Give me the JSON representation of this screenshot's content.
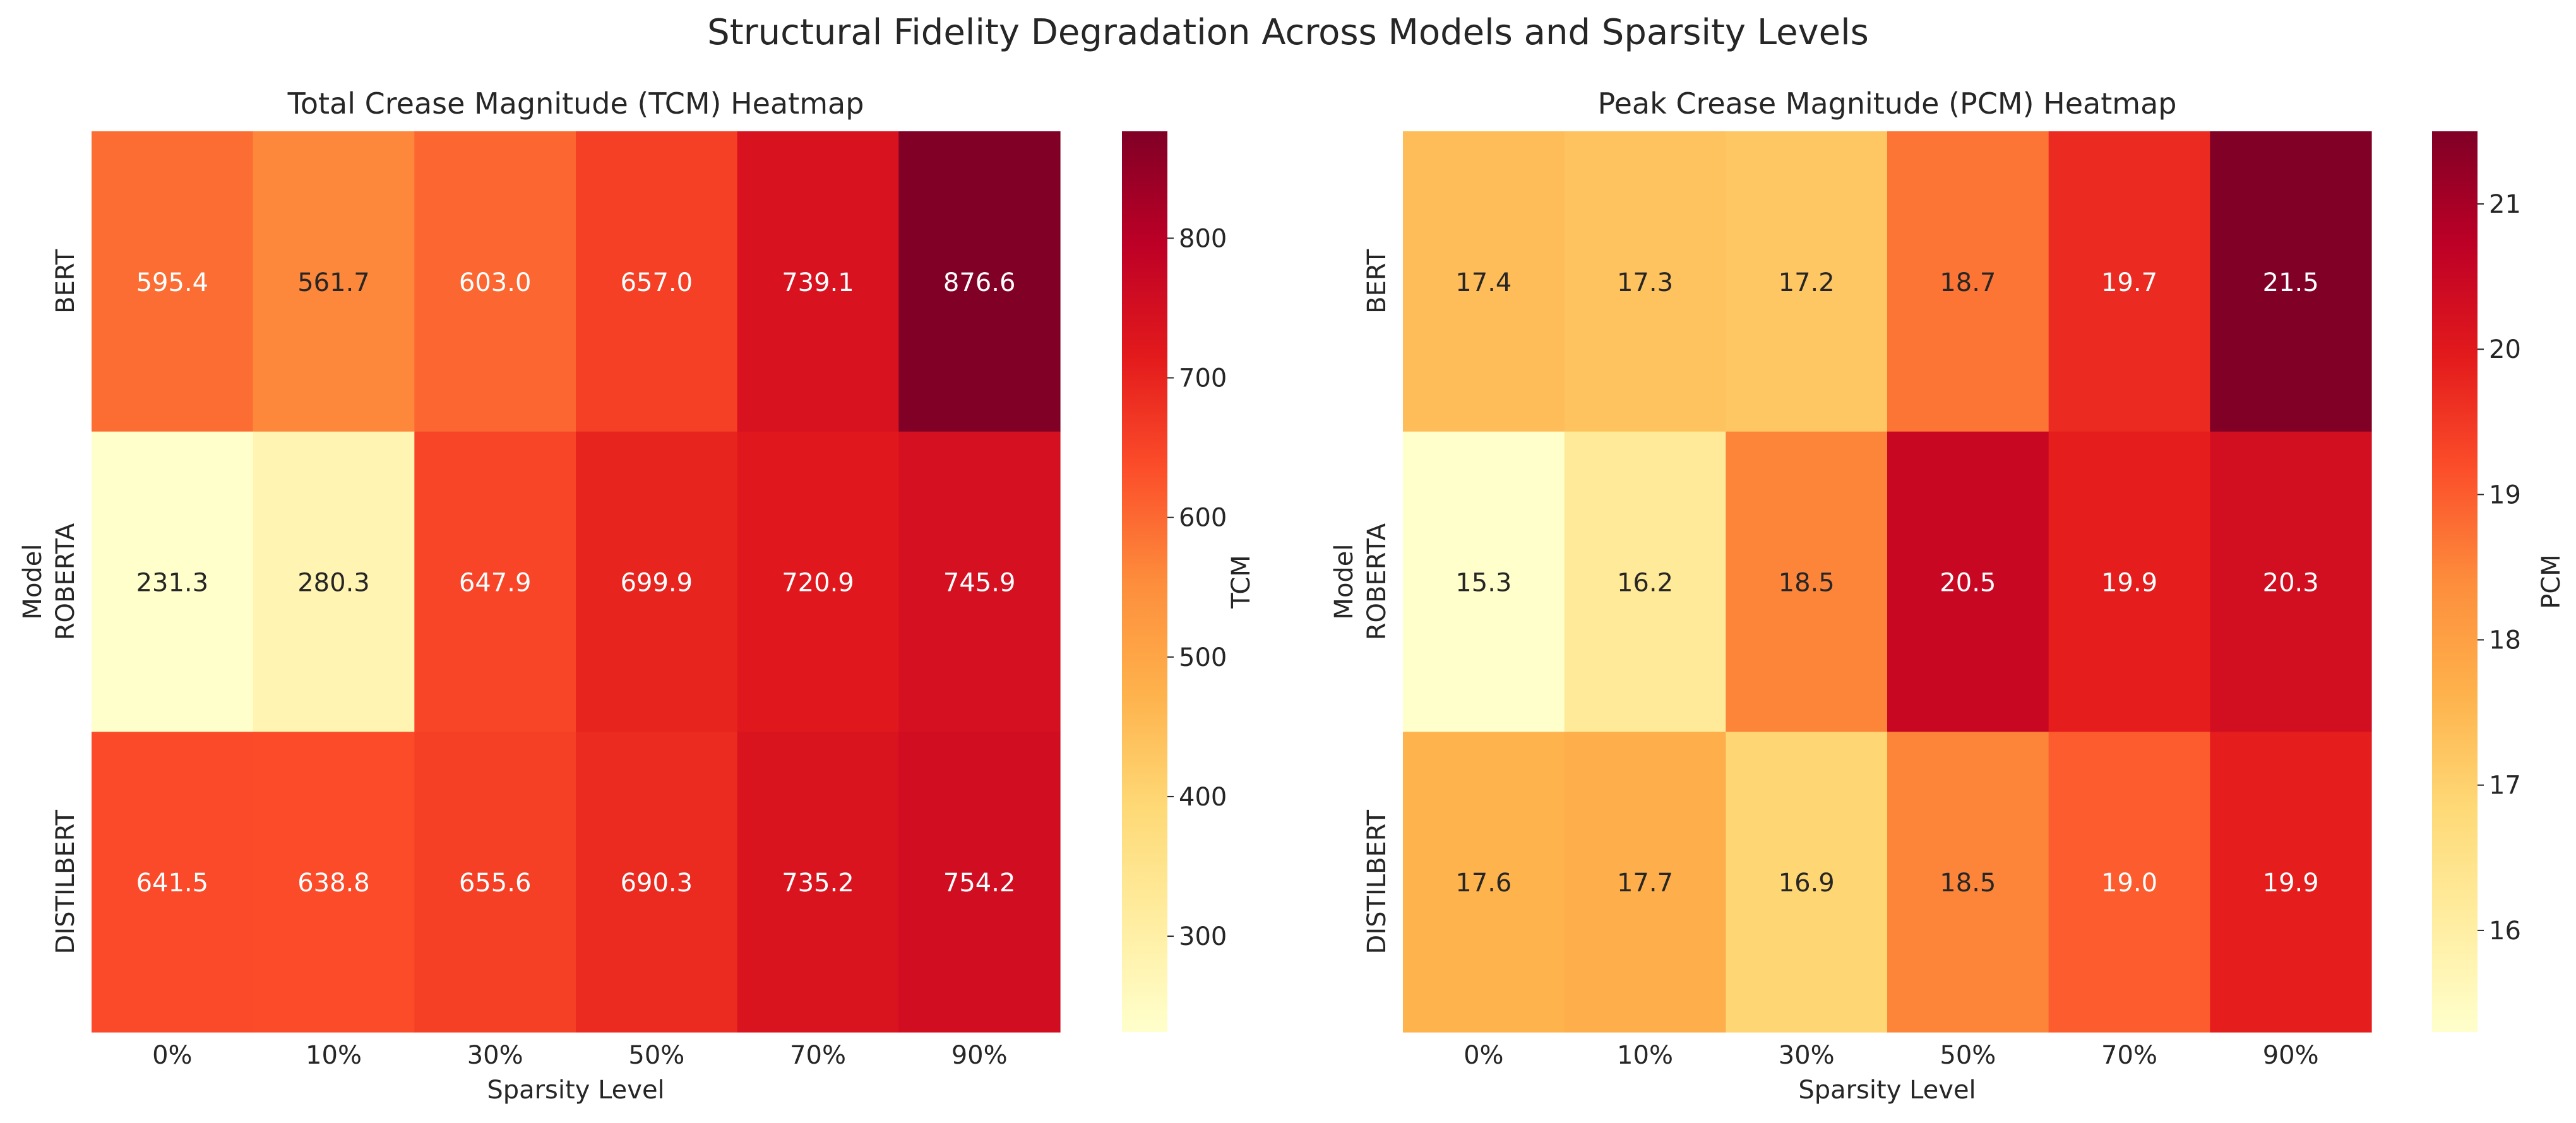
{
  "suptitle": "Structural Fidelity Degradation Across Models and Sparsity Levels",
  "chart_data": [
    {
      "type": "heatmap",
      "title": "Total Crease Magnitude (TCM) Heatmap",
      "xlabel": "Sparsity Level",
      "ylabel": "Model",
      "x_categories": [
        "0%",
        "10%",
        "30%",
        "50%",
        "70%",
        "90%"
      ],
      "y_categories": [
        "BERT",
        "ROBERTA",
        "DISTILBERT"
      ],
      "values": [
        [
          595.4,
          561.7,
          603.0,
          657.0,
          739.1,
          876.6
        ],
        [
          231.3,
          280.3,
          647.9,
          699.9,
          720.9,
          745.9
        ],
        [
          641.5,
          638.8,
          655.6,
          690.3,
          735.2,
          754.2
        ]
      ],
      "value_format": 1,
      "colorbar": {
        "label": "TCM",
        "range": [
          231.3,
          876.6
        ],
        "ticks": [
          300,
          400,
          500,
          600,
          700,
          800
        ]
      },
      "colormap": "YlOrRd",
      "grid": false
    },
    {
      "type": "heatmap",
      "title": "Peak Crease Magnitude (PCM) Heatmap",
      "xlabel": "Sparsity Level",
      "ylabel": "Model",
      "x_categories": [
        "0%",
        "10%",
        "30%",
        "50%",
        "70%",
        "90%"
      ],
      "y_categories": [
        "BERT",
        "ROBERTA",
        "DISTILBERT"
      ],
      "values": [
        [
          17.4,
          17.3,
          17.2,
          18.7,
          19.7,
          21.5
        ],
        [
          15.3,
          16.2,
          18.5,
          20.5,
          19.9,
          20.3
        ],
        [
          17.6,
          17.7,
          16.9,
          18.5,
          19.0,
          19.9
        ]
      ],
      "value_format": 1,
      "colorbar": {
        "label": "PCM",
        "range": [
          15.3,
          21.5
        ],
        "ticks": [
          16,
          17,
          18,
          19,
          20,
          21
        ]
      },
      "colormap": "YlOrRd",
      "grid": false
    }
  ]
}
